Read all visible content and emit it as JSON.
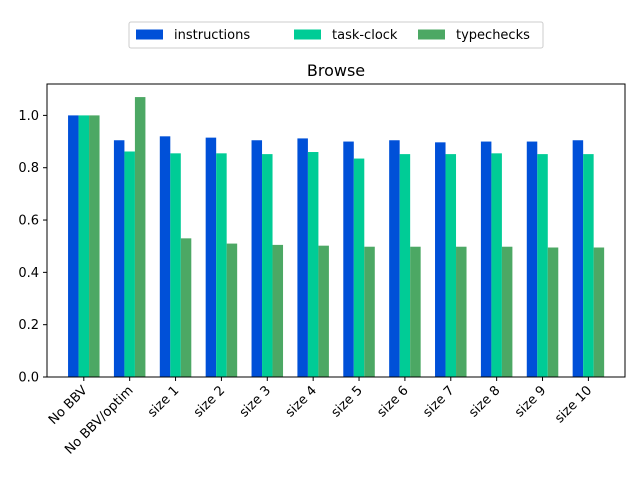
{
  "chart_data": {
    "type": "bar",
    "title": "Browse",
    "xlabel": "",
    "ylabel": "",
    "categories": [
      "No BBV",
      "No BBV/optim",
      "size 1",
      "size 2",
      "size 3",
      "size 4",
      "size 5",
      "size 6",
      "size 7",
      "size 8",
      "size 9",
      "size 10"
    ],
    "series": [
      {
        "name": "instructions",
        "color": "#0050d8",
        "values": [
          1.0,
          0.905,
          0.92,
          0.915,
          0.905,
          0.912,
          0.9,
          0.905,
          0.897,
          0.9,
          0.9,
          0.905
        ]
      },
      {
        "name": "task-clock",
        "color": "#00cc96",
        "values": [
          1.0,
          0.862,
          0.855,
          0.855,
          0.852,
          0.86,
          0.835,
          0.852,
          0.852,
          0.855,
          0.852,
          0.852
        ]
      },
      {
        "name": "typechecks",
        "color": "#4ca864",
        "values": [
          1.0,
          1.07,
          0.53,
          0.51,
          0.505,
          0.502,
          0.498,
          0.498,
          0.498,
          0.498,
          0.495,
          0.495
        ]
      }
    ],
    "ylim": [
      0,
      1.12
    ],
    "yticks": [
      "0.0",
      "0.2",
      "0.4",
      "0.6",
      "0.8",
      "1.0"
    ],
    "grid": false,
    "legend_position": "top-center"
  }
}
